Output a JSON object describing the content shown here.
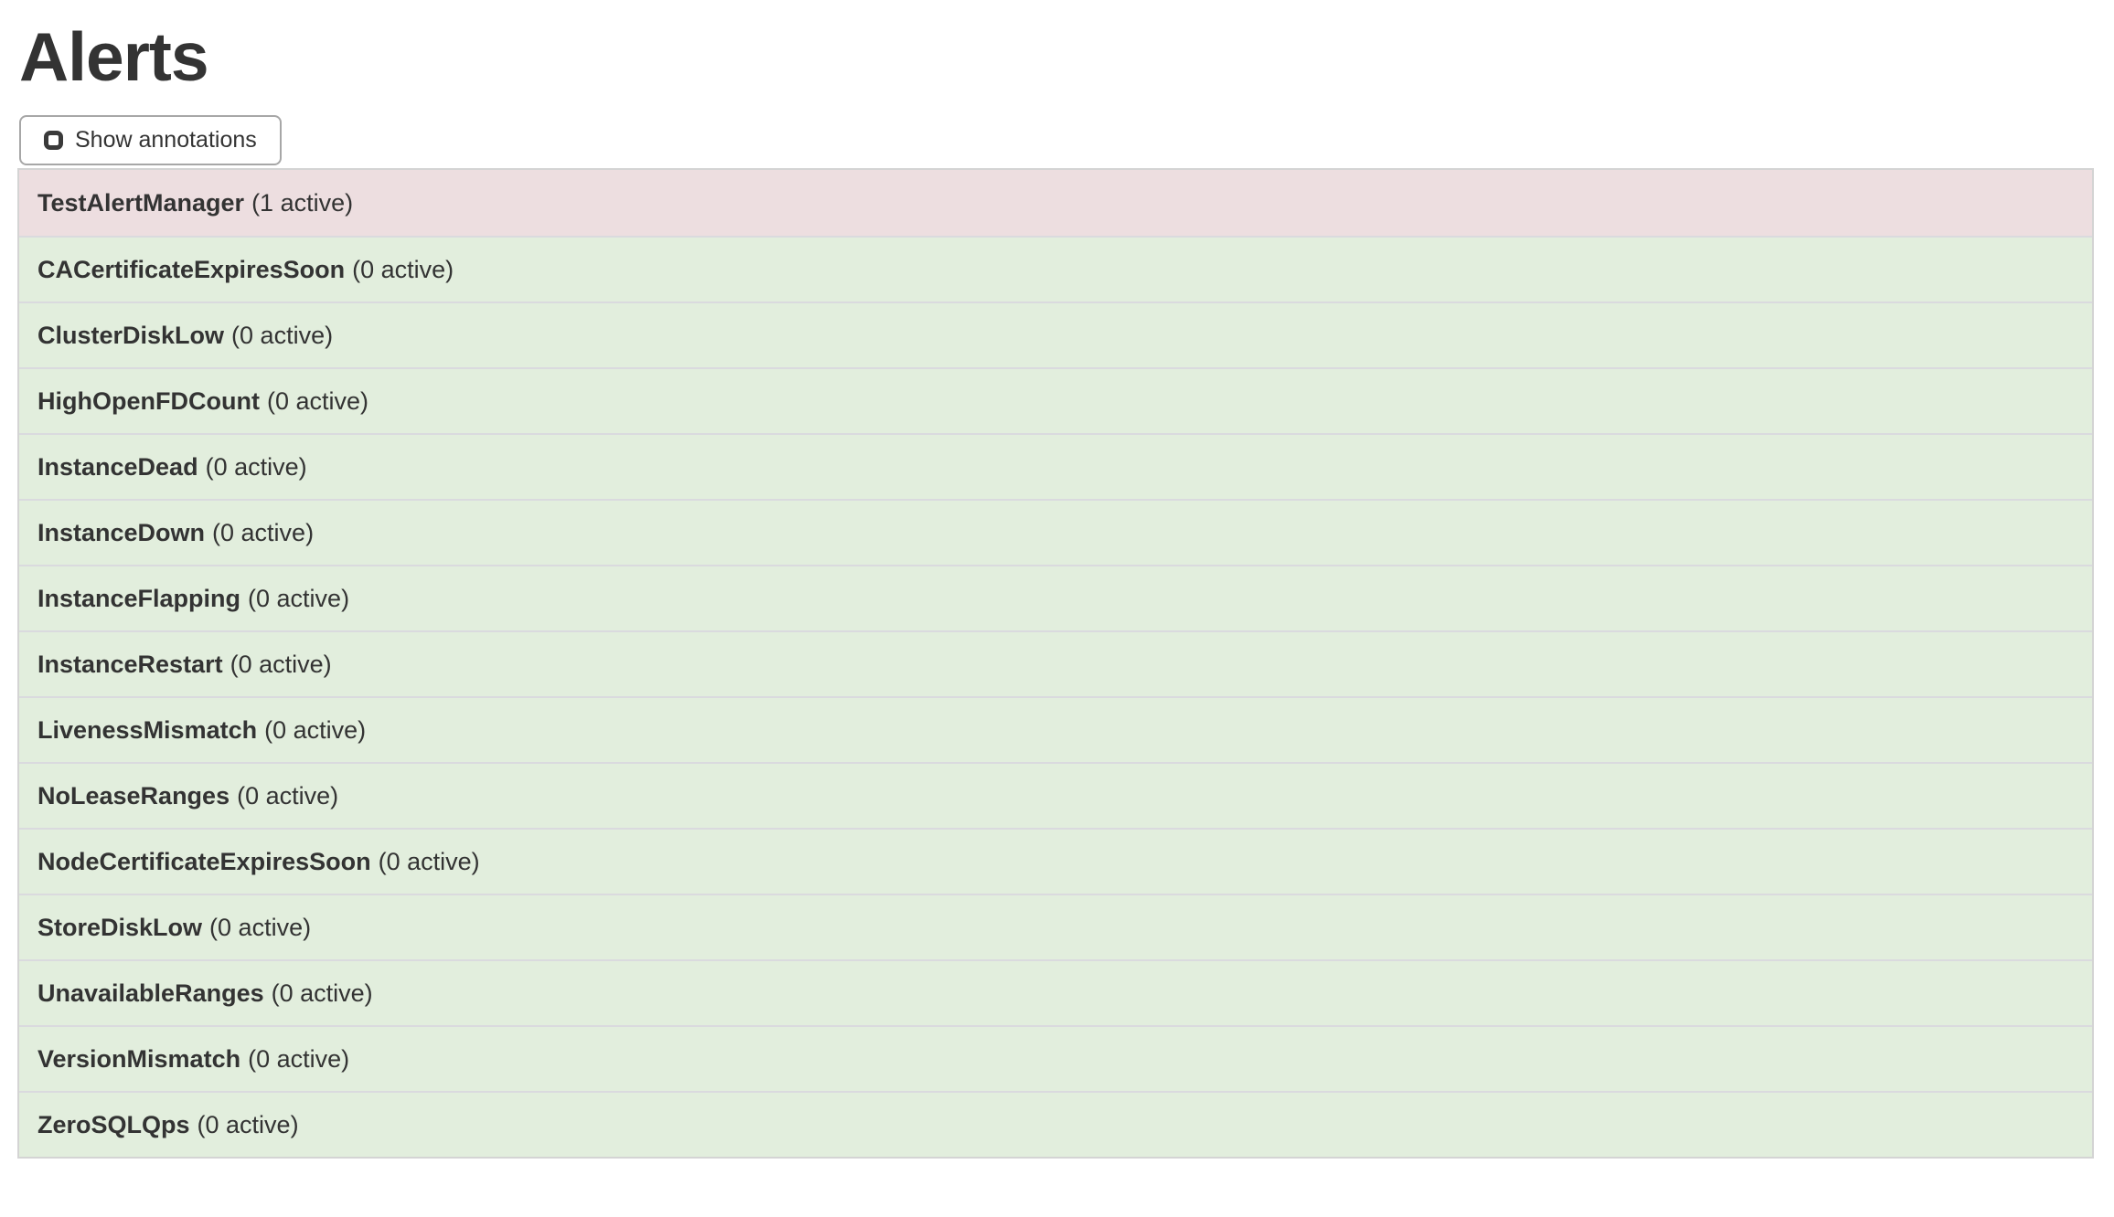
{
  "page": {
    "title": "Alerts"
  },
  "toolbar": {
    "show_annotations_label": "Show annotations",
    "checkbox_checked": false
  },
  "alerts": [
    {
      "name": "TestAlertManager",
      "count_label": "(1 active)",
      "state": "firing"
    },
    {
      "name": "CACertificateExpiresSoon",
      "count_label": "(0 active)",
      "state": "inactive"
    },
    {
      "name": "ClusterDiskLow",
      "count_label": "(0 active)",
      "state": "inactive"
    },
    {
      "name": "HighOpenFDCount",
      "count_label": "(0 active)",
      "state": "inactive"
    },
    {
      "name": "InstanceDead",
      "count_label": "(0 active)",
      "state": "inactive"
    },
    {
      "name": "InstanceDown",
      "count_label": "(0 active)",
      "state": "inactive"
    },
    {
      "name": "InstanceFlapping",
      "count_label": "(0 active)",
      "state": "inactive"
    },
    {
      "name": "InstanceRestart",
      "count_label": "(0 active)",
      "state": "inactive"
    },
    {
      "name": "LivenessMismatch",
      "count_label": "(0 active)",
      "state": "inactive"
    },
    {
      "name": "NoLeaseRanges",
      "count_label": "(0 active)",
      "state": "inactive"
    },
    {
      "name": "NodeCertificateExpiresSoon",
      "count_label": "(0 active)",
      "state": "inactive"
    },
    {
      "name": "StoreDiskLow",
      "count_label": "(0 active)",
      "state": "inactive"
    },
    {
      "name": "UnavailableRanges",
      "count_label": "(0 active)",
      "state": "inactive"
    },
    {
      "name": "VersionMismatch",
      "count_label": "(0 active)",
      "state": "inactive"
    },
    {
      "name": "ZeroSQLQps",
      "count_label": "(0 active)",
      "state": "inactive"
    }
  ],
  "colors": {
    "firing-bg": "#eddee0",
    "inactive-bg": "#e2eedd",
    "row-border": "#dadade",
    "outer-border": "#d4d4d4",
    "button-border": "#a7a7a7",
    "text": "#333333",
    "title": "#333333"
  }
}
